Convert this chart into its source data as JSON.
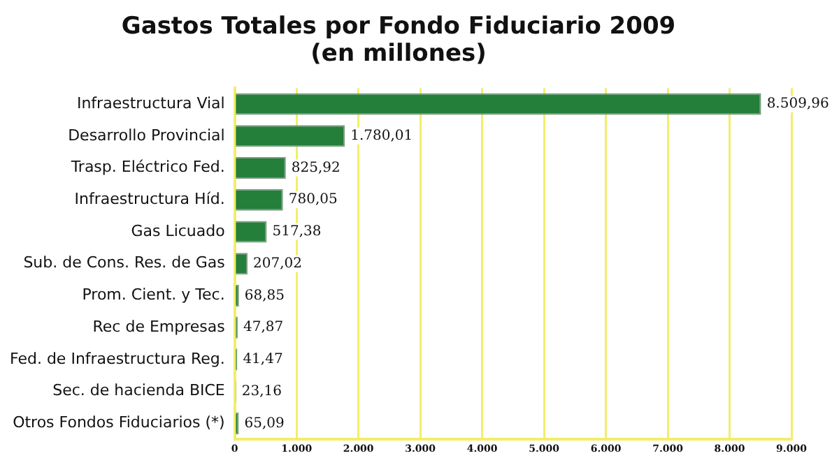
{
  "chart_data": {
    "type": "bar",
    "orientation": "horizontal",
    "title": "Gastos Totales por Fondo Fiduciario 2009\n(en millones)",
    "categories": [
      "Infraestructura Vial",
      "Desarrollo Provincial",
      "Trasp. Eléctrico Fed.",
      "Infraestructura Híd.",
      "Gas Licuado",
      "Sub. de Cons. Res. de Gas",
      "Prom. Cient. y Tec.",
      "Rec de Empresas",
      "Fed. de Infraestructura Reg.",
      "Sec. de hacienda BICE",
      "Otros Fondos Fiduciarios (*)"
    ],
    "values": [
      8509.96,
      1780.01,
      825.92,
      780.05,
      517.38,
      207.02,
      68.85,
      47.87,
      41.47,
      23.16,
      65.09
    ],
    "value_labels": [
      "8.509,96",
      "1.780,01",
      "825,92",
      "780,05",
      "517,38",
      "207,02",
      "68,85",
      "47,87",
      "41,47",
      "23,16",
      "65,09"
    ],
    "color": "#237f3a",
    "xlim": [
      0,
      9000
    ],
    "xticks": [
      0,
      {
        "value": 1000,
        "label": "1.000"
      },
      {
        "value": 2000,
        "label": "2.000"
      },
      {
        "value": 3000,
        "label": "3.000"
      },
      {
        "value": 4000,
        "label": "4.000"
      },
      {
        "value": 5000,
        "label": "5.000"
      },
      {
        "value": 6000,
        "label": "6.000"
      },
      {
        "value": 7000,
        "label": "7.000"
      },
      {
        "value": 8000,
        "label": "8.000"
      },
      {
        "value": 9000,
        "label": "9.000"
      }
    ],
    "grid": "x"
  }
}
